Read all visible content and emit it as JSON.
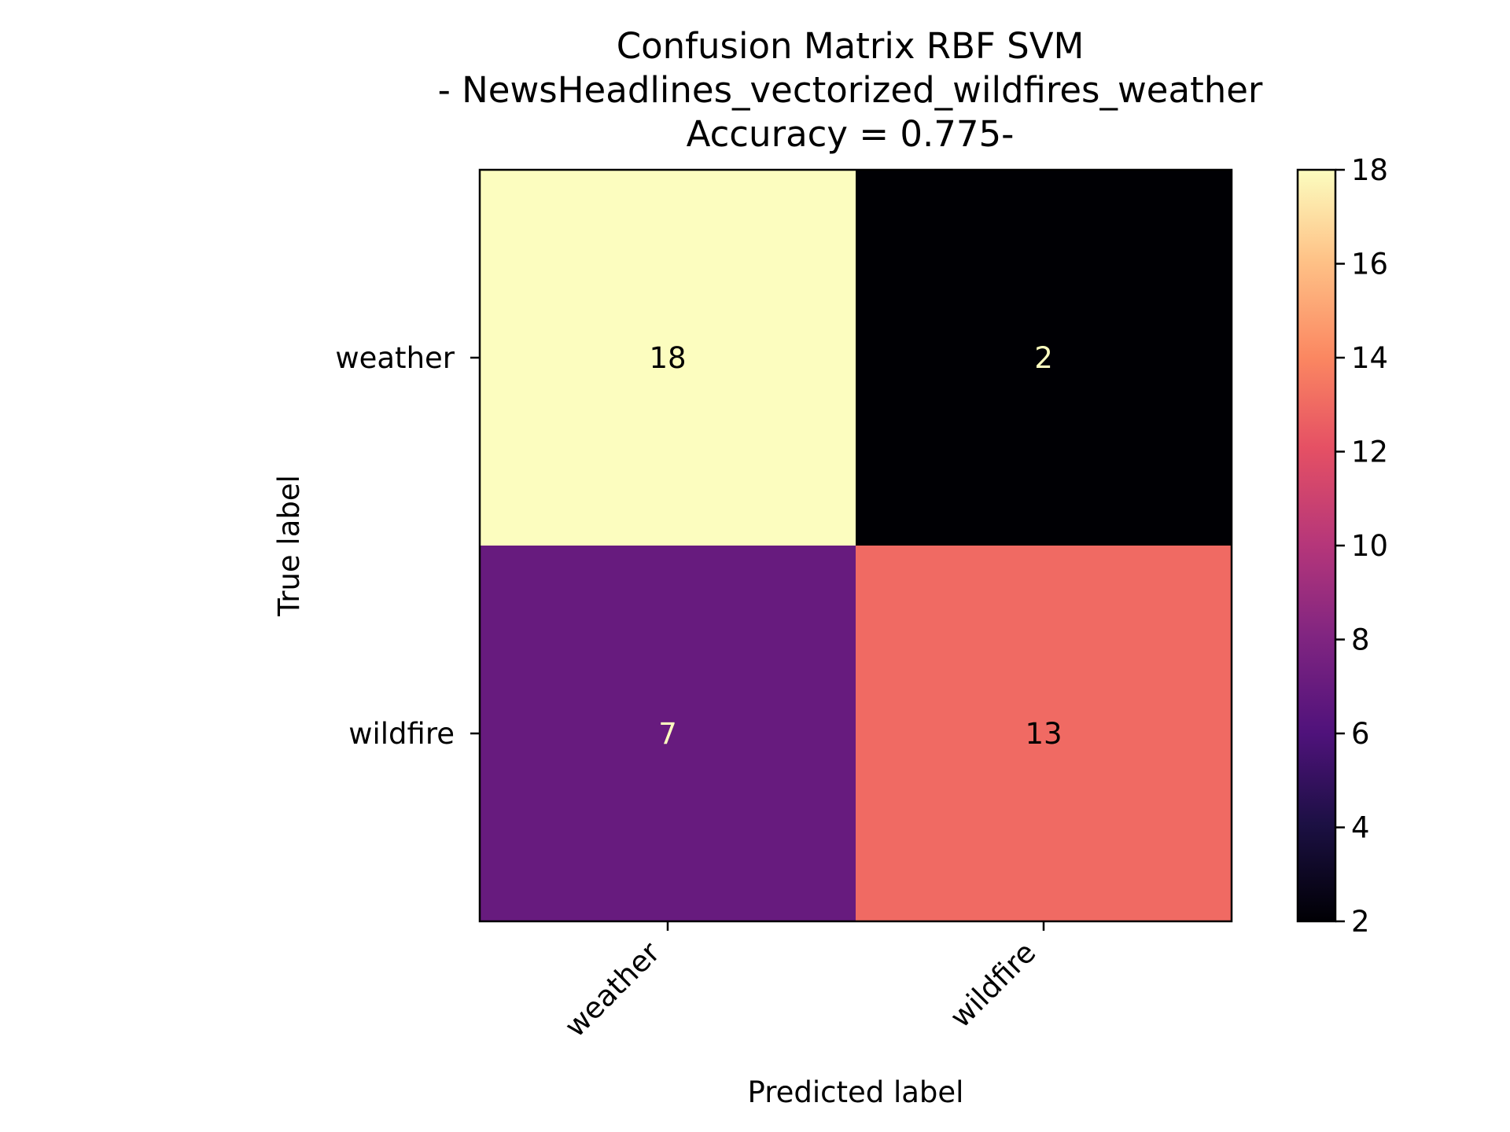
{
  "chart_data": {
    "type": "heatmap",
    "title_lines": [
      "Confusion Matrix RBF SVM",
      "- NewsHeadlines_vectorized_wildfires_weather",
      "Accuracy = 0.775-"
    ],
    "xlabel": "Predicted label",
    "ylabel": "True label",
    "x_categories": [
      "weather",
      "wildfire"
    ],
    "y_categories": [
      "weather",
      "wildfire"
    ],
    "values": [
      [
        18,
        2
      ],
      [
        7,
        13
      ]
    ],
    "colormap": "magma",
    "colorbar": {
      "range": [
        2,
        18
      ],
      "ticks": [
        2,
        4,
        6,
        8,
        10,
        12,
        14,
        16,
        18
      ]
    },
    "grid": false
  }
}
